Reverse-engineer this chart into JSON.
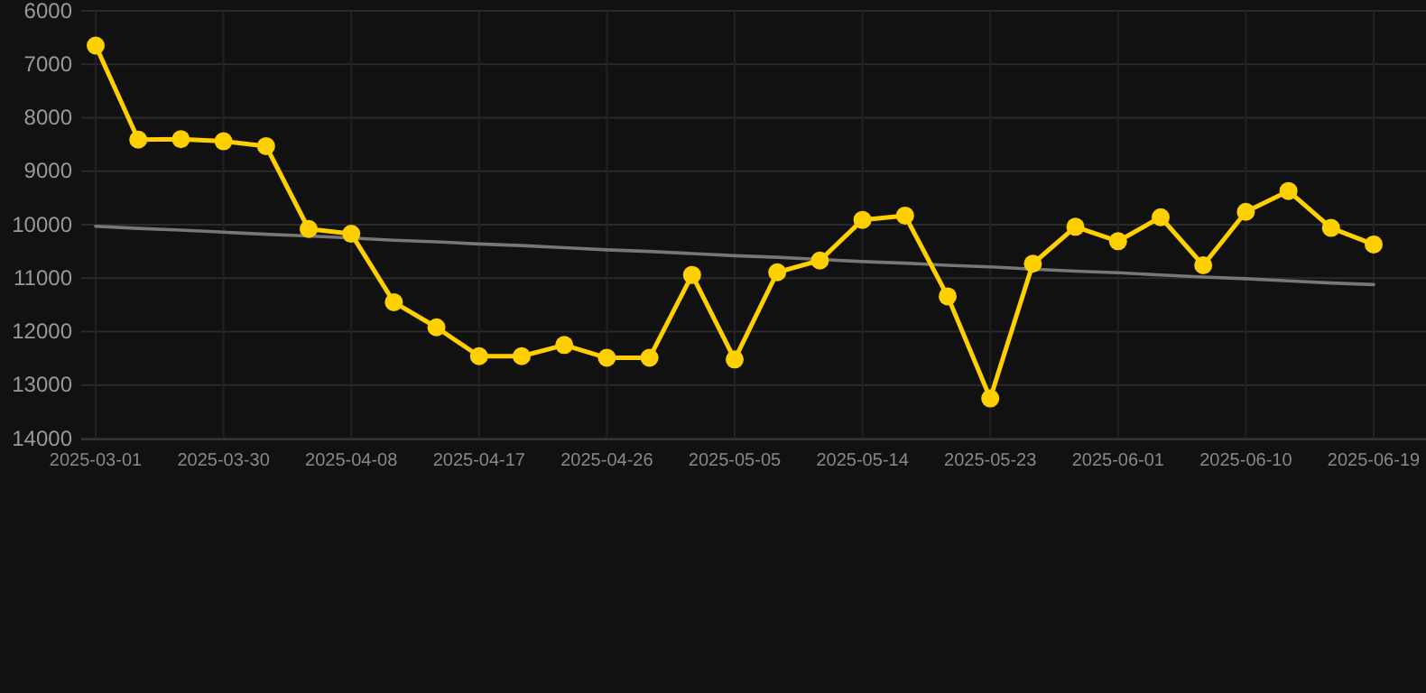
{
  "chart_data": {
    "type": "line",
    "categories": [
      "2025-03-01",
      null,
      null,
      "2025-03-30",
      null,
      null,
      "2025-04-08",
      null,
      null,
      "2025-04-17",
      null,
      null,
      "2025-04-26",
      null,
      null,
      "2025-05-05",
      null,
      null,
      "2025-05-14",
      null,
      null,
      "2025-05-23",
      null,
      null,
      "2025-06-01",
      null,
      null,
      "2025-06-10",
      null,
      null,
      "2025-06-19"
    ],
    "series": [
      {
        "color": "#ffd000",
        "marker": "circle",
        "values": [
          6650,
          8410,
          8400,
          8440,
          8530,
          10080,
          10170,
          11450,
          11920,
          12460,
          12460,
          12250,
          12490,
          12490,
          10940,
          12520,
          10890,
          10670,
          9910,
          9830,
          11340,
          13250,
          10730,
          10040,
          10310,
          9860,
          10760,
          9760,
          9370,
          10060,
          10370
        ]
      },
      {
        "color": "#777777",
        "marker": "none",
        "values": [
          10030,
          10070,
          10100,
          10140,
          10180,
          10210,
          10250,
          10290,
          10320,
          10360,
          10390,
          10430,
          10470,
          10500,
          10540,
          10580,
          10610,
          10650,
          10690,
          10720,
          10760,
          10790,
          10830,
          10870,
          10900,
          10940,
          10980,
          11010,
          11050,
          11090,
          11120
        ]
      }
    ],
    "ylim": [
      14000,
      6000
    ],
    "yticks": [
      6000,
      7000,
      8000,
      9000,
      10000,
      11000,
      12000,
      13000,
      14000
    ],
    "grid": true
  }
}
